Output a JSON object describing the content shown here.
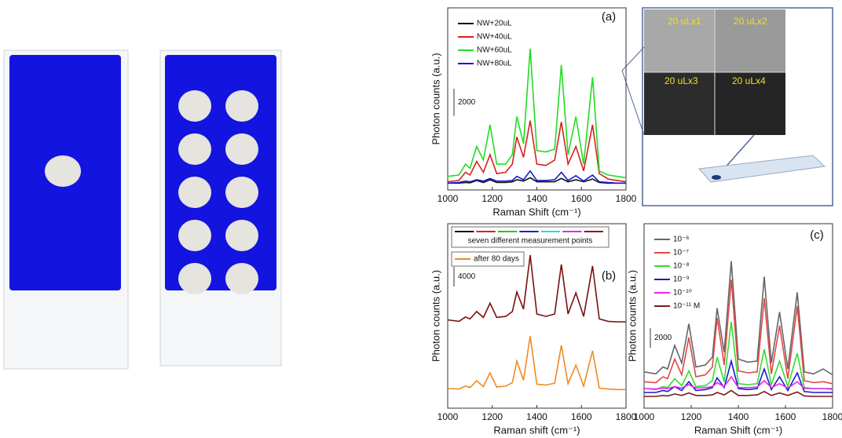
{
  "chart_data": [
    {
      "type": "line",
      "panel": "(a)",
      "x_label": "Raman Shift (cm⁻¹)",
      "y_label": "Photon counts (a.u.)",
      "x": [
        1000,
        1050,
        1080,
        1100,
        1130,
        1160,
        1190,
        1220,
        1260,
        1290,
        1310,
        1340,
        1370,
        1400,
        1440,
        1480,
        1510,
        1540,
        1575,
        1610,
        1650,
        1680,
        1720,
        1760,
        1800
      ],
      "xlim": [
        1000,
        1800
      ],
      "xticks": [
        1000,
        1200,
        1400,
        1600,
        1800
      ],
      "ylim": [
        -400,
        13000
      ],
      "scale_bar": 2000,
      "legend": "upper left",
      "series": [
        {
          "name": "NW+20uL",
          "color": "#111111",
          "values": [
            100,
            100,
            150,
            120,
            300,
            150,
            350,
            150,
            150,
            200,
            350,
            250,
            500,
            200,
            200,
            200,
            450,
            200,
            350,
            200,
            400,
            150,
            100,
            100,
            100
          ]
        },
        {
          "name": "NW+40uL",
          "color": "#d62020",
          "values": [
            200,
            300,
            900,
            700,
            1700,
            900,
            2200,
            800,
            900,
            1500,
            3500,
            2000,
            4700,
            1500,
            1400,
            1800,
            4600,
            1500,
            2800,
            1000,
            4400,
            800,
            400,
            300,
            200
          ]
        },
        {
          "name": "NW+60uL",
          "color": "#22dd22",
          "values": [
            600,
            700,
            1500,
            1200,
            2800,
            1800,
            4400,
            1500,
            1500,
            2200,
            5000,
            3000,
            10000,
            2500,
            2400,
            2600,
            8800,
            2200,
            5000,
            1500,
            7900,
            1000,
            700,
            600,
            500
          ]
        },
        {
          "name": "NW+80uL",
          "color": "#1a1acc",
          "values": [
            100,
            150,
            250,
            200,
            350,
            250,
            450,
            250,
            250,
            300,
            600,
            350,
            1000,
            300,
            300,
            350,
            900,
            300,
            650,
            250,
            700,
            200,
            150,
            100,
            100
          ]
        }
      ]
    },
    {
      "type": "line",
      "panel": "(b)",
      "x_label": "Raman shift (cm⁻¹)",
      "y_label": "Photon counts (a.u.)",
      "x": [
        1000,
        1050,
        1080,
        1100,
        1130,
        1160,
        1190,
        1220,
        1260,
        1290,
        1310,
        1340,
        1370,
        1400,
        1440,
        1480,
        1510,
        1540,
        1575,
        1610,
        1650,
        1680,
        1720,
        1760,
        1800
      ],
      "xlim": [
        1000,
        1800
      ],
      "xticks": [
        1000,
        1200,
        1400,
        1600,
        1800
      ],
      "ylim": [
        -3700,
        33900
      ],
      "scale_bar": 4000,
      "legend": "upper left",
      "series": [
        {
          "name": "seven different measurement points",
          "color": "#7a1010",
          "colors": [
            "#111111",
            "#e02020",
            "#20cc20",
            "#2020cc",
            "#20dddd",
            "#ee22ee",
            "#8b1a1a"
          ],
          "values": [
            14300,
            14000,
            14900,
            14500,
            16000,
            14800,
            17700,
            14800,
            15000,
            16000,
            20000,
            16500,
            27500,
            15500,
            15000,
            15500,
            25600,
            15500,
            19800,
            15000,
            25300,
            14500,
            14000,
            13900,
            13900
          ]
        },
        {
          "name": "after 80 days",
          "color": "#f08a24",
          "values": [
            300,
            200,
            800,
            500,
            1900,
            700,
            3500,
            600,
            800,
            1500,
            5900,
            2000,
            11000,
            1200,
            1000,
            1400,
            9100,
            1300,
            5100,
            800,
            8000,
            400,
            200,
            100,
            100
          ]
        }
      ]
    },
    {
      "type": "line",
      "panel": "(c)",
      "x_label": "Raman Shift (cm⁻¹)",
      "y_label": "Photon counts (a.u.)",
      "x": [
        1000,
        1050,
        1080,
        1100,
        1130,
        1160,
        1190,
        1220,
        1260,
        1290,
        1310,
        1340,
        1370,
        1400,
        1440,
        1480,
        1510,
        1540,
        1575,
        1610,
        1650,
        1680,
        1720,
        1760,
        1800
      ],
      "xlim": [
        1000,
        1800
      ],
      "xticks": [
        1000,
        1200,
        1400,
        1600,
        1800
      ],
      "ylim": [
        -1200,
        17600
      ],
      "scale_bar": 2000,
      "legend": "upper left",
      "series": [
        {
          "name": "10⁻⁶",
          "color": "#666666",
          "values": [
            2500,
            2300,
            3000,
            2800,
            5200,
            3400,
            7400,
            3000,
            3200,
            4000,
            9000,
            4500,
            13800,
            3800,
            3500,
            3600,
            12200,
            3400,
            8600,
            2800,
            10600,
            2500,
            2300,
            2800,
            2200
          ]
        },
        {
          "name": "10⁻⁷",
          "color": "#e04848",
          "values": [
            1500,
            1400,
            2000,
            1800,
            3800,
            2200,
            6000,
            2000,
            2200,
            3000,
            8000,
            3200,
            11900,
            2600,
            2400,
            2500,
            10000,
            2300,
            7200,
            1800,
            9200,
            1600,
            1400,
            1500,
            1300
          ]
        },
        {
          "name": "10⁻⁸",
          "color": "#33dd33",
          "values": [
            800,
            700,
            1000,
            900,
            1800,
            1100,
            2600,
            1000,
            1100,
            1600,
            4000,
            1500,
            7600,
            1300,
            1200,
            1300,
            4800,
            1200,
            3600,
            1000,
            4400,
            900,
            800,
            800,
            700
          ]
        },
        {
          "name": "10⁻⁹",
          "color": "#1a1acc",
          "values": [
            400,
            400,
            600,
            500,
            1000,
            600,
            1500,
            600,
            700,
            900,
            1900,
            900,
            3600,
            800,
            700,
            800,
            2800,
            700,
            2000,
            600,
            2400,
            500,
            400,
            400,
            400
          ]
        },
        {
          "name": "10⁻¹⁰",
          "color": "#ee22ee",
          "values": [
            800,
            750,
            850,
            800,
            1000,
            850,
            1200,
            850,
            900,
            1000,
            1400,
            1000,
            2000,
            900,
            900,
            950,
            1600,
            900,
            1300,
            850,
            1500,
            800,
            800,
            800,
            800
          ]
        },
        {
          "name": "10⁻¹¹ M",
          "color": "#7a1a1a",
          "values": [
            0,
            0,
            100,
            50,
            250,
            100,
            350,
            100,
            100,
            150,
            400,
            150,
            600,
            100,
            100,
            150,
            500,
            100,
            350,
            100,
            450,
            50,
            0,
            0,
            0
          ]
        }
      ]
    }
  ],
  "inset_labels": [
    "20 uLx1",
    "20 uLx2",
    "20 uLx3",
    "20 uLx4"
  ]
}
